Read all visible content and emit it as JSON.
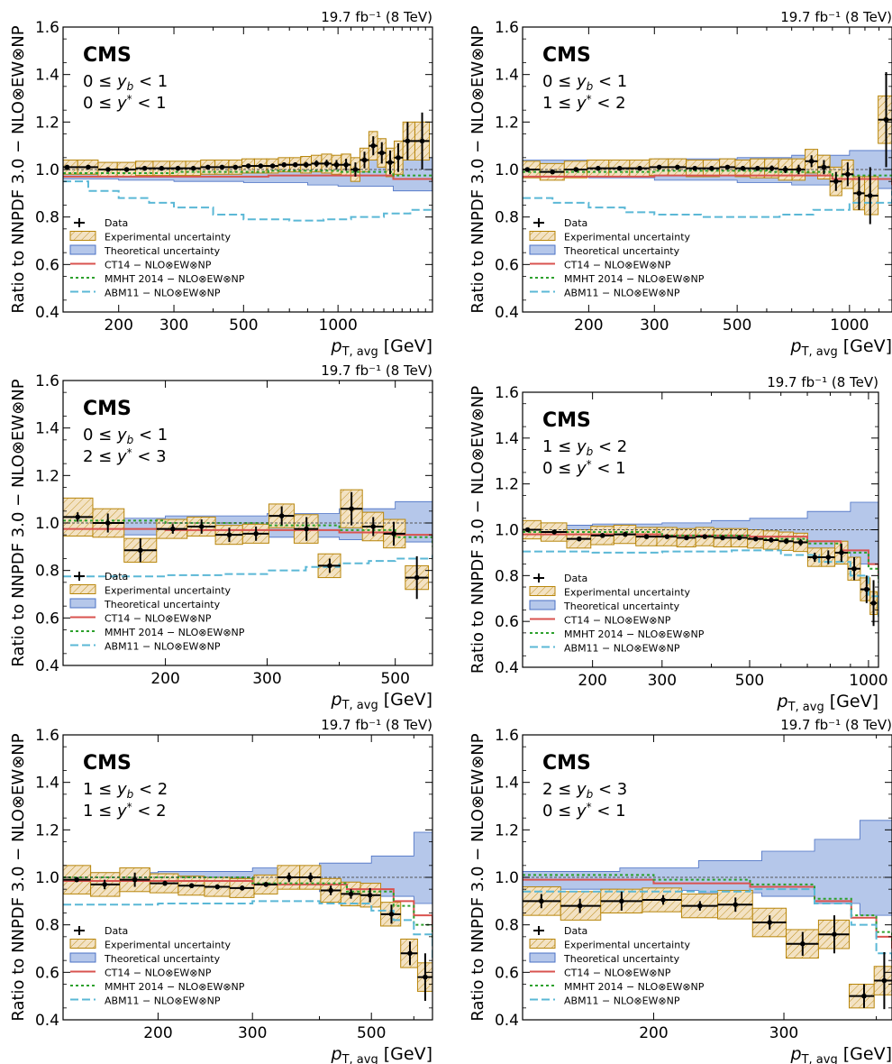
{
  "figure": {
    "y_axis_label": "Ratio to NNPDF 3.0 − NLO⊗EW⊗NP",
    "x_axis_label_main": "p",
    "x_axis_label_sub": "T, avg",
    "x_axis_unit": "[GeV]",
    "lumi_label": "19.7 fb⁻¹ (8 TeV)",
    "experiment": "CMS",
    "legend": [
      "Data",
      "Experimental uncertainty",
      "Theoretical uncertainty",
      "CT14 − NLO⊗EW⊗NP",
      "MMHT 2014 − NLO⊗EW⊗NP",
      "ABM11 − NLO⊗EW⊗NP"
    ]
  },
  "colors": {
    "data": "#000000",
    "exp_fill": "#f3e2c3",
    "exp_edge": "#b8860b",
    "theory_fill": "#b5c7ea",
    "theory_edge": "#4a70c4",
    "ct14": "#d9534f",
    "mmht": "#2ca02c",
    "abm11": "#5bb8d6"
  },
  "chart_data": [
    {
      "type": "line",
      "bin_label": [
        "0 ≤ ",
        "y",
        "b",
        " < 1"
      ],
      "bin_label2": [
        "0 ≤ ",
        "y",
        "*",
        " < 1"
      ],
      "xscale": "log",
      "xlim": [
        133,
        2000
      ],
      "ylim": [
        0.4,
        1.6
      ],
      "xticks": [
        200,
        300,
        500,
        1000
      ],
      "data_x": [
        137,
        160,
        185,
        212,
        242,
        274,
        309,
        346,
        385,
        427,
        471,
        518,
        567,
        619,
        673,
        731,
        791,
        854,
        920,
        989,
        1061,
        1136,
        1214,
        1295,
        1379,
        1466,
        1556,
        1666,
        1854
      ],
      "data_y": [
        1.01,
        1.01,
        1.0,
        1.0,
        1.005,
        1.005,
        1.005,
        1.005,
        1.01,
        1.01,
        1.01,
        1.015,
        1.015,
        1.015,
        1.02,
        1.02,
        1.02,
        1.025,
        1.025,
        1.02,
        1.02,
        1.0,
        1.04,
        1.1,
        1.07,
        1.03,
        1.05,
        1.12,
        1.12
      ],
      "data_yerr": [
        0.004,
        0.004,
        0.004,
        0.004,
        0.004,
        0.004,
        0.004,
        0.005,
        0.005,
        0.005,
        0.006,
        0.006,
        0.007,
        0.008,
        0.009,
        0.01,
        0.012,
        0.014,
        0.016,
        0.02,
        0.025,
        0.03,
        0.035,
        0.04,
        0.045,
        0.05,
        0.06,
        0.08,
        0.12
      ],
      "exp_band": [
        0.03,
        0.03,
        0.03,
        0.03,
        0.03,
        0.03,
        0.03,
        0.03,
        0.03,
        0.03,
        0.03,
        0.03,
        0.03,
        0.03,
        0.03,
        0.03,
        0.035,
        0.035,
        0.04,
        0.04,
        0.045,
        0.05,
        0.05,
        0.06,
        0.06,
        0.06,
        0.07,
        0.08,
        0.08
      ],
      "theory_x": [
        133,
        200,
        300,
        500,
        800,
        1000,
        1500,
        2000
      ],
      "theory_lo": [
        0.96,
        0.955,
        0.95,
        0.945,
        0.935,
        0.93,
        0.91,
        0.9
      ],
      "theory_hi": [
        1.03,
        1.03,
        1.03,
        1.035,
        1.04,
        1.045,
        1.05,
        1.055
      ],
      "ct14_x": [
        133,
        300,
        600,
        1000,
        1500,
        2000
      ],
      "ct14_y": [
        0.97,
        0.97,
        0.975,
        0.975,
        0.96,
        0.95
      ],
      "mmht_x": [
        133,
        300,
        600,
        1000,
        1500,
        2000
      ],
      "mmht_y": [
        0.985,
        0.99,
        0.995,
        0.99,
        0.975,
        0.96
      ],
      "abm11_x": [
        133,
        160,
        200,
        250,
        300,
        400,
        500,
        700,
        900,
        1100,
        1400,
        1700,
        2000
      ],
      "abm11_y": [
        0.95,
        0.91,
        0.88,
        0.86,
        0.84,
        0.81,
        0.79,
        0.785,
        0.79,
        0.8,
        0.815,
        0.83,
        0.84
      ]
    },
    {
      "type": "line",
      "bin_label": [
        "0 ≤ ",
        "y",
        "b",
        " < 1"
      ],
      "bin_label2": [
        "1 ≤ ",
        "y",
        "*",
        " < 2"
      ],
      "xscale": "log",
      "xlim": [
        133,
        1300
      ],
      "ylim": [
        0.4,
        1.6
      ],
      "xticks": [
        200,
        300,
        500,
        1000
      ],
      "data_x": [
        137,
        160,
        185,
        212,
        242,
        274,
        309,
        346,
        385,
        427,
        471,
        518,
        567,
        619,
        673,
        731,
        791,
        854,
        920,
        989,
        1061,
        1136,
        1254
      ],
      "data_y": [
        1.0,
        0.99,
        1.0,
        1.005,
        1.005,
        1.005,
        1.01,
        1.01,
        1.005,
        1.005,
        1.01,
        1.005,
        1.005,
        1.005,
        1.0,
        1.0,
        1.035,
        1.01,
        0.95,
        0.98,
        0.9,
        0.89,
        1.21
      ],
      "data_yerr": [
        0.005,
        0.005,
        0.005,
        0.005,
        0.005,
        0.005,
        0.005,
        0.006,
        0.006,
        0.007,
        0.008,
        0.009,
        0.01,
        0.012,
        0.015,
        0.02,
        0.025,
        0.03,
        0.04,
        0.05,
        0.07,
        0.12,
        0.2
      ],
      "exp_band": [
        0.035,
        0.035,
        0.035,
        0.035,
        0.035,
        0.035,
        0.035,
        0.035,
        0.035,
        0.035,
        0.035,
        0.035,
        0.04,
        0.04,
        0.045,
        0.045,
        0.05,
        0.05,
        0.06,
        0.06,
        0.07,
        0.08,
        0.1
      ],
      "theory_x": [
        133,
        200,
        300,
        500,
        700,
        1000,
        1300
      ],
      "theory_lo": [
        0.97,
        0.965,
        0.955,
        0.945,
        0.935,
        0.92,
        0.9
      ],
      "theory_hi": [
        1.04,
        1.04,
        1.045,
        1.05,
        1.06,
        1.08,
        1.11
      ],
      "ct14_x": [
        133,
        300,
        600,
        900,
        1300
      ],
      "ct14_y": [
        0.97,
        0.975,
        0.975,
        0.96,
        0.935
      ],
      "mmht_x": [
        133,
        300,
        600,
        900,
        1300
      ],
      "mmht_y": [
        0.99,
        0.995,
        0.99,
        0.975,
        0.955
      ],
      "abm11_x": [
        133,
        160,
        200,
        250,
        300,
        400,
        500,
        650,
        800,
        1000,
        1300
      ],
      "abm11_y": [
        0.88,
        0.86,
        0.84,
        0.82,
        0.81,
        0.8,
        0.8,
        0.81,
        0.83,
        0.86,
        0.91
      ]
    },
    {
      "type": "line",
      "bin_label": [
        "0 ≤ ",
        "y",
        "b",
        " < 1"
      ],
      "bin_label2": [
        "2 ≤ ",
        "y",
        "*",
        " < 3"
      ],
      "xscale": "log",
      "xlim": [
        133,
        580
      ],
      "ylim": [
        0.4,
        1.6
      ],
      "xticks": [
        200,
        300,
        500
      ],
      "data_x": [
        141,
        159,
        181,
        206,
        231,
        258,
        287,
        318,
        351,
        385,
        420,
        458,
        497,
        545
      ],
      "data_y": [
        1.025,
        1.0,
        0.885,
        0.975,
        0.985,
        0.95,
        0.955,
        1.03,
        0.975,
        0.82,
        1.06,
        0.985,
        0.955,
        0.77
      ],
      "data_yerr": [
        0.02,
        0.04,
        0.05,
        0.02,
        0.03,
        0.03,
        0.03,
        0.04,
        0.05,
        0.03,
        0.07,
        0.04,
        0.05,
        0.09
      ],
      "exp_band": [
        0.08,
        0.06,
        0.05,
        0.04,
        0.04,
        0.04,
        0.04,
        0.05,
        0.06,
        0.05,
        0.08,
        0.06,
        0.06,
        0.05
      ],
      "theory_x": [
        133,
        200,
        300,
        400,
        500,
        580
      ],
      "theory_lo": [
        0.95,
        0.95,
        0.94,
        0.93,
        0.92,
        0.9
      ],
      "theory_hi": [
        1.02,
        1.03,
        1.04,
        1.06,
        1.09,
        1.11
      ],
      "ct14_x": [
        133,
        200,
        300,
        400,
        500,
        580
      ],
      "ct14_y": [
        0.975,
        0.97,
        0.97,
        0.96,
        0.95,
        0.935
      ],
      "mmht_x": [
        133,
        200,
        300,
        400,
        500,
        580
      ],
      "mmht_y": [
        1.01,
        1.0,
        0.99,
        0.97,
        0.94,
        0.9
      ],
      "abm11_x": [
        133,
        160,
        200,
        250,
        300,
        350,
        400,
        450,
        500,
        580
      ],
      "abm11_y": [
        0.775,
        0.775,
        0.78,
        0.785,
        0.8,
        0.815,
        0.83,
        0.84,
        0.85,
        0.865
      ]
    },
    {
      "type": "line",
      "bin_label": [
        "1 ≤ ",
        "y",
        "b",
        " < 2"
      ],
      "bin_label2": [
        "0 ≤ ",
        "y",
        "*",
        " < 1"
      ],
      "xscale": "log",
      "xlim": [
        133,
        1060
      ],
      "ylim": [
        0.4,
        1.6
      ],
      "xticks": [
        200,
        300,
        500,
        1000
      ],
      "data_x": [
        137,
        160,
        185,
        212,
        242,
        274,
        309,
        346,
        385,
        427,
        471,
        518,
        567,
        619,
        673,
        731,
        791,
        854,
        920,
        989,
        1030
      ],
      "data_y": [
        1.0,
        0.99,
        0.96,
        0.975,
        0.98,
        0.97,
        0.97,
        0.965,
        0.97,
        0.965,
        0.965,
        0.96,
        0.955,
        0.95,
        0.945,
        0.88,
        0.88,
        0.9,
        0.83,
        0.74,
        0.68
      ],
      "data_yerr": [
        0.005,
        0.005,
        0.005,
        0.005,
        0.005,
        0.005,
        0.005,
        0.006,
        0.006,
        0.007,
        0.008,
        0.009,
        0.01,
        0.012,
        0.015,
        0.02,
        0.03,
        0.04,
        0.05,
        0.06,
        0.1
      ],
      "exp_band": [
        0.04,
        0.04,
        0.04,
        0.04,
        0.04,
        0.04,
        0.04,
        0.04,
        0.04,
        0.04,
        0.04,
        0.04,
        0.04,
        0.04,
        0.04,
        0.04,
        0.04,
        0.05,
        0.05,
        0.05,
        0.05
      ],
      "theory_x": [
        133,
        200,
        300,
        400,
        500,
        700,
        900,
        1060
      ],
      "theory_lo": [
        0.97,
        0.965,
        0.95,
        0.94,
        0.93,
        0.9,
        0.85,
        0.8
      ],
      "theory_hi": [
        1.02,
        1.025,
        1.03,
        1.04,
        1.05,
        1.08,
        1.12,
        1.18
      ],
      "ct14_x": [
        133,
        300,
        500,
        700,
        850,
        1000,
        1060
      ],
      "ct14_y": [
        0.98,
        0.975,
        0.97,
        0.95,
        0.91,
        0.85,
        0.8
      ],
      "mmht_x": [
        133,
        300,
        500,
        700,
        850,
        1000,
        1060
      ],
      "mmht_y": [
        0.99,
        0.975,
        0.96,
        0.94,
        0.9,
        0.83,
        0.77
      ],
      "abm11_x": [
        133,
        200,
        300,
        450,
        600,
        750,
        900,
        1000,
        1060
      ],
      "abm11_y": [
        0.905,
        0.9,
        0.905,
        0.91,
        0.89,
        0.86,
        0.8,
        0.71,
        0.62
      ]
    },
    {
      "type": "line",
      "bin_label": [
        "1 ≤ ",
        "y",
        "b",
        " < 2"
      ],
      "bin_label2": [
        "1 ≤ ",
        "y",
        "*",
        " < 2"
      ],
      "xscale": "log",
      "xlim": [
        133,
        650
      ],
      "ylim": [
        0.4,
        1.6
      ],
      "xticks": [
        200,
        300,
        500
      ],
      "data_x": [
        141,
        159,
        181,
        206,
        231,
        258,
        287,
        318,
        351,
        385,
        420,
        458,
        497,
        545,
        590,
        630
      ],
      "data_y": [
        0.99,
        0.97,
        0.99,
        0.975,
        0.965,
        0.96,
        0.955,
        0.97,
        1.0,
        1.0,
        0.945,
        0.93,
        0.925,
        0.845,
        0.68,
        0.58
      ],
      "data_yerr": [
        0.01,
        0.02,
        0.03,
        0.01,
        0.01,
        0.01,
        0.01,
        0.01,
        0.02,
        0.02,
        0.02,
        0.02,
        0.03,
        0.04,
        0.05,
        0.1
      ],
      "exp_band": [
        0.06,
        0.05,
        0.05,
        0.04,
        0.04,
        0.04,
        0.04,
        0.04,
        0.05,
        0.05,
        0.05,
        0.05,
        0.05,
        0.05,
        0.06,
        0.06
      ],
      "theory_x": [
        133,
        200,
        300,
        400,
        500,
        600,
        650
      ],
      "theory_lo": [
        0.97,
        0.965,
        0.955,
        0.94,
        0.92,
        0.89,
        0.87
      ],
      "theory_hi": [
        1.02,
        1.025,
        1.04,
        1.06,
        1.09,
        1.19,
        1.22
      ],
      "ct14_x": [
        133,
        300,
        450,
        550,
        600,
        650
      ],
      "ct14_y": [
        0.985,
        0.97,
        0.95,
        0.9,
        0.84,
        0.78
      ],
      "mmht_x": [
        133,
        300,
        450,
        550,
        600,
        650
      ],
      "mmht_y": [
        1.0,
        0.975,
        0.94,
        0.88,
        0.8,
        0.72
      ],
      "abm11_x": [
        133,
        200,
        300,
        400,
        500,
        550,
        600,
        650
      ],
      "abm11_y": [
        0.885,
        0.89,
        0.9,
        0.89,
        0.86,
        0.82,
        0.76,
        0.66
      ]
    },
    {
      "type": "line",
      "bin_label": [
        "2 ≤ ",
        "y",
        "b",
        " < 3"
      ],
      "bin_label2": [
        "0 ≤ ",
        "y",
        "*",
        " < 1"
      ],
      "xscale": "log",
      "xlim": [
        133,
        420
      ],
      "ylim": [
        0.4,
        1.6
      ],
      "xticks": [
        200,
        300
      ],
      "data_x": [
        141,
        159,
        181,
        206,
        231,
        258,
        287,
        318,
        351,
        385,
        410
      ],
      "data_y": [
        0.9,
        0.88,
        0.9,
        0.905,
        0.88,
        0.885,
        0.81,
        0.72,
        0.76,
        0.5,
        0.565
      ],
      "data_yerr": [
        0.03,
        0.03,
        0.04,
        0.02,
        0.02,
        0.03,
        0.03,
        0.05,
        0.08,
        0.05,
        0.12
      ],
      "exp_band": [
        0.06,
        0.06,
        0.05,
        0.05,
        0.05,
        0.06,
        0.06,
        0.06,
        0.06,
        0.05,
        0.06
      ],
      "theory_x": [
        133,
        180,
        230,
        280,
        330,
        380,
        420
      ],
      "theory_lo": [
        0.95,
        0.945,
        0.935,
        0.92,
        0.89,
        0.84,
        0.8
      ],
      "theory_hi": [
        1.025,
        1.04,
        1.07,
        1.11,
        1.16,
        1.24,
        1.31
      ],
      "ct14_x": [
        133,
        200,
        270,
        330,
        370,
        400,
        420
      ],
      "ct14_y": [
        0.99,
        0.975,
        0.96,
        0.9,
        0.83,
        0.75,
        0.7
      ],
      "mmht_x": [
        133,
        200,
        270,
        330,
        370,
        400,
        420
      ],
      "mmht_y": [
        1.01,
        0.99,
        0.97,
        0.91,
        0.84,
        0.77,
        0.72
      ],
      "abm11_x": [
        133,
        200,
        270,
        330,
        370,
        400,
        420
      ],
      "abm11_y": [
        0.94,
        0.94,
        0.95,
        0.89,
        0.8,
        0.68,
        0.64
      ]
    }
  ]
}
